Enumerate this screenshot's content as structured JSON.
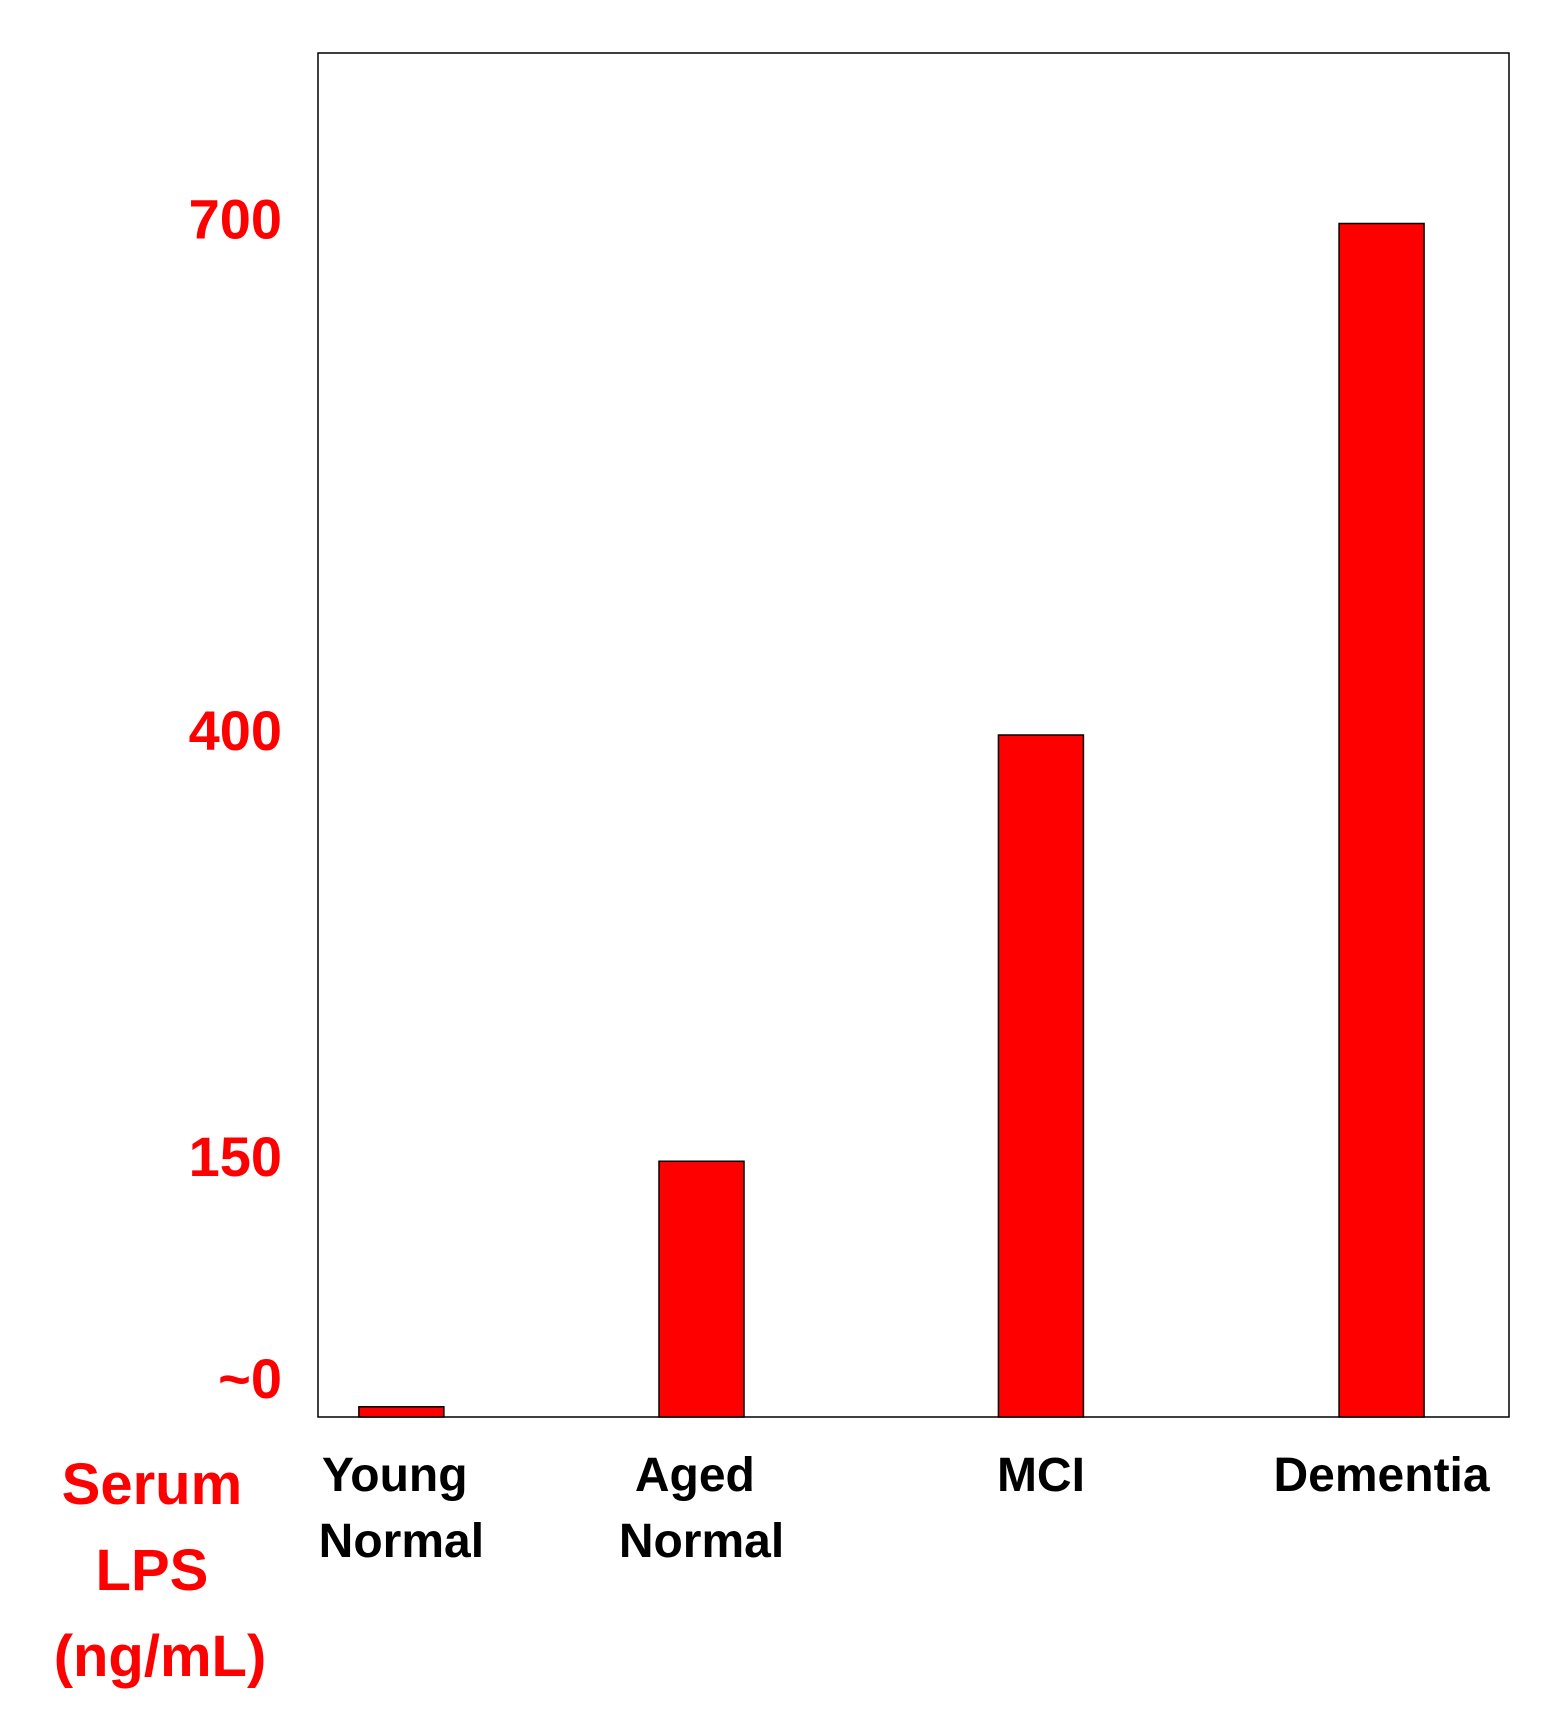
{
  "chart_data": {
    "type": "bar",
    "y_label": "Serum LPS (ng/mL)",
    "categories": [
      "Young Normal",
      "Aged Normal",
      "MCI",
      "Dementia"
    ],
    "values": [
      6,
      150,
      400,
      700
    ],
    "color": "#ff0000",
    "ylim": [
      0,
      800
    ],
    "yticks": [
      {
        "value": 0,
        "label": "~0"
      },
      150,
      400,
      700
    ],
    "grid": false
  }
}
